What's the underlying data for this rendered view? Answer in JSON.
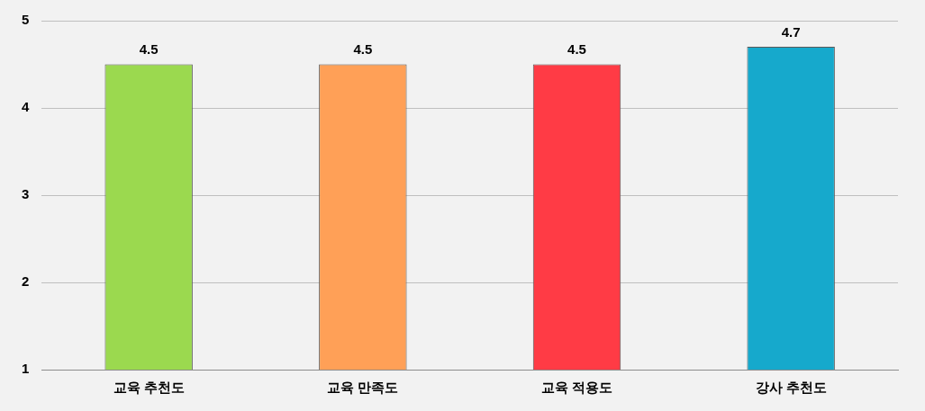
{
  "chart_data": {
    "type": "bar",
    "categories": [
      "교육 추천도",
      "교육 만족도",
      "교육 적용도",
      "강사 추천도"
    ],
    "values": [
      4.5,
      4.5,
      4.5,
      4.7
    ],
    "colors": [
      "#9bd94f",
      "#ffa057",
      "#ff3b45",
      "#16a9cc"
    ],
    "ylim": [
      1,
      5
    ],
    "yticks": [
      1,
      2,
      3,
      4,
      5
    ],
    "grid": "y",
    "data_labels": true
  }
}
